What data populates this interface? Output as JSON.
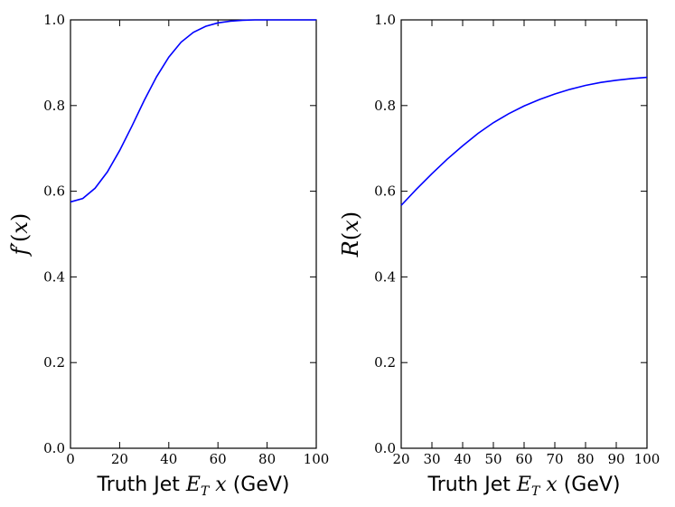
{
  "chart_data": [
    {
      "type": "line",
      "xlabel": "Truth Jet E_T x (GeV)",
      "xlabel_parts": [
        "Truth Jet ",
        "E",
        "T",
        " x",
        " (GeV)"
      ],
      "ylabel": "f′(x)",
      "xlim": [
        0,
        100
      ],
      "ylim": [
        0.0,
        1.0
      ],
      "xticks": [
        0,
        20,
        40,
        60,
        80,
        100
      ],
      "xtick_labels": [
        "0",
        "20",
        "40",
        "60",
        "80",
        "100"
      ],
      "yticks": [
        0.0,
        0.2,
        0.4,
        0.6,
        0.8,
        1.0
      ],
      "ytick_labels": [
        "0.0",
        "0.2",
        "0.4",
        "0.6",
        "0.8",
        "1.0"
      ],
      "series": [
        {
          "name": "f'(x)",
          "color": "#0000ff",
          "x": [
            0,
            5,
            10,
            15,
            20,
            25,
            30,
            35,
            40,
            45,
            50,
            55,
            60,
            65,
            70,
            75,
            80,
            85,
            90,
            95,
            100
          ],
          "y": [
            0.575,
            0.583,
            0.607,
            0.645,
            0.695,
            0.752,
            0.812,
            0.867,
            0.913,
            0.948,
            0.971,
            0.985,
            0.993,
            0.997,
            0.999,
            1.0,
            1.0,
            1.0,
            1.0,
            1.0,
            1.0
          ]
        }
      ]
    },
    {
      "type": "line",
      "xlabel": "Truth Jet E_T x (GeV)",
      "xlabel_parts": [
        "Truth Jet ",
        "E",
        "T",
        " x",
        " (GeV)"
      ],
      "ylabel": "R(x)",
      "xlim": [
        20,
        100
      ],
      "ylim": [
        0.0,
        1.0
      ],
      "xticks": [
        20,
        30,
        40,
        50,
        60,
        70,
        80,
        90,
        100
      ],
      "xtick_labels": [
        "20",
        "30",
        "40",
        "50",
        "60",
        "70",
        "80",
        "90",
        "100"
      ],
      "yticks": [
        0.0,
        0.2,
        0.4,
        0.6,
        0.8,
        1.0
      ],
      "ytick_labels": [
        "0.0",
        "0.2",
        "0.4",
        "0.6",
        "0.8",
        "1.0"
      ],
      "series": [
        {
          "name": "R(x)",
          "color": "#0000ff",
          "x": [
            20,
            25,
            30,
            35,
            40,
            45,
            50,
            55,
            60,
            65,
            70,
            75,
            80,
            85,
            90,
            95,
            100
          ],
          "y": [
            0.567,
            0.605,
            0.641,
            0.675,
            0.706,
            0.735,
            0.76,
            0.781,
            0.799,
            0.814,
            0.827,
            0.838,
            0.847,
            0.854,
            0.859,
            0.863,
            0.866
          ]
        }
      ]
    }
  ]
}
